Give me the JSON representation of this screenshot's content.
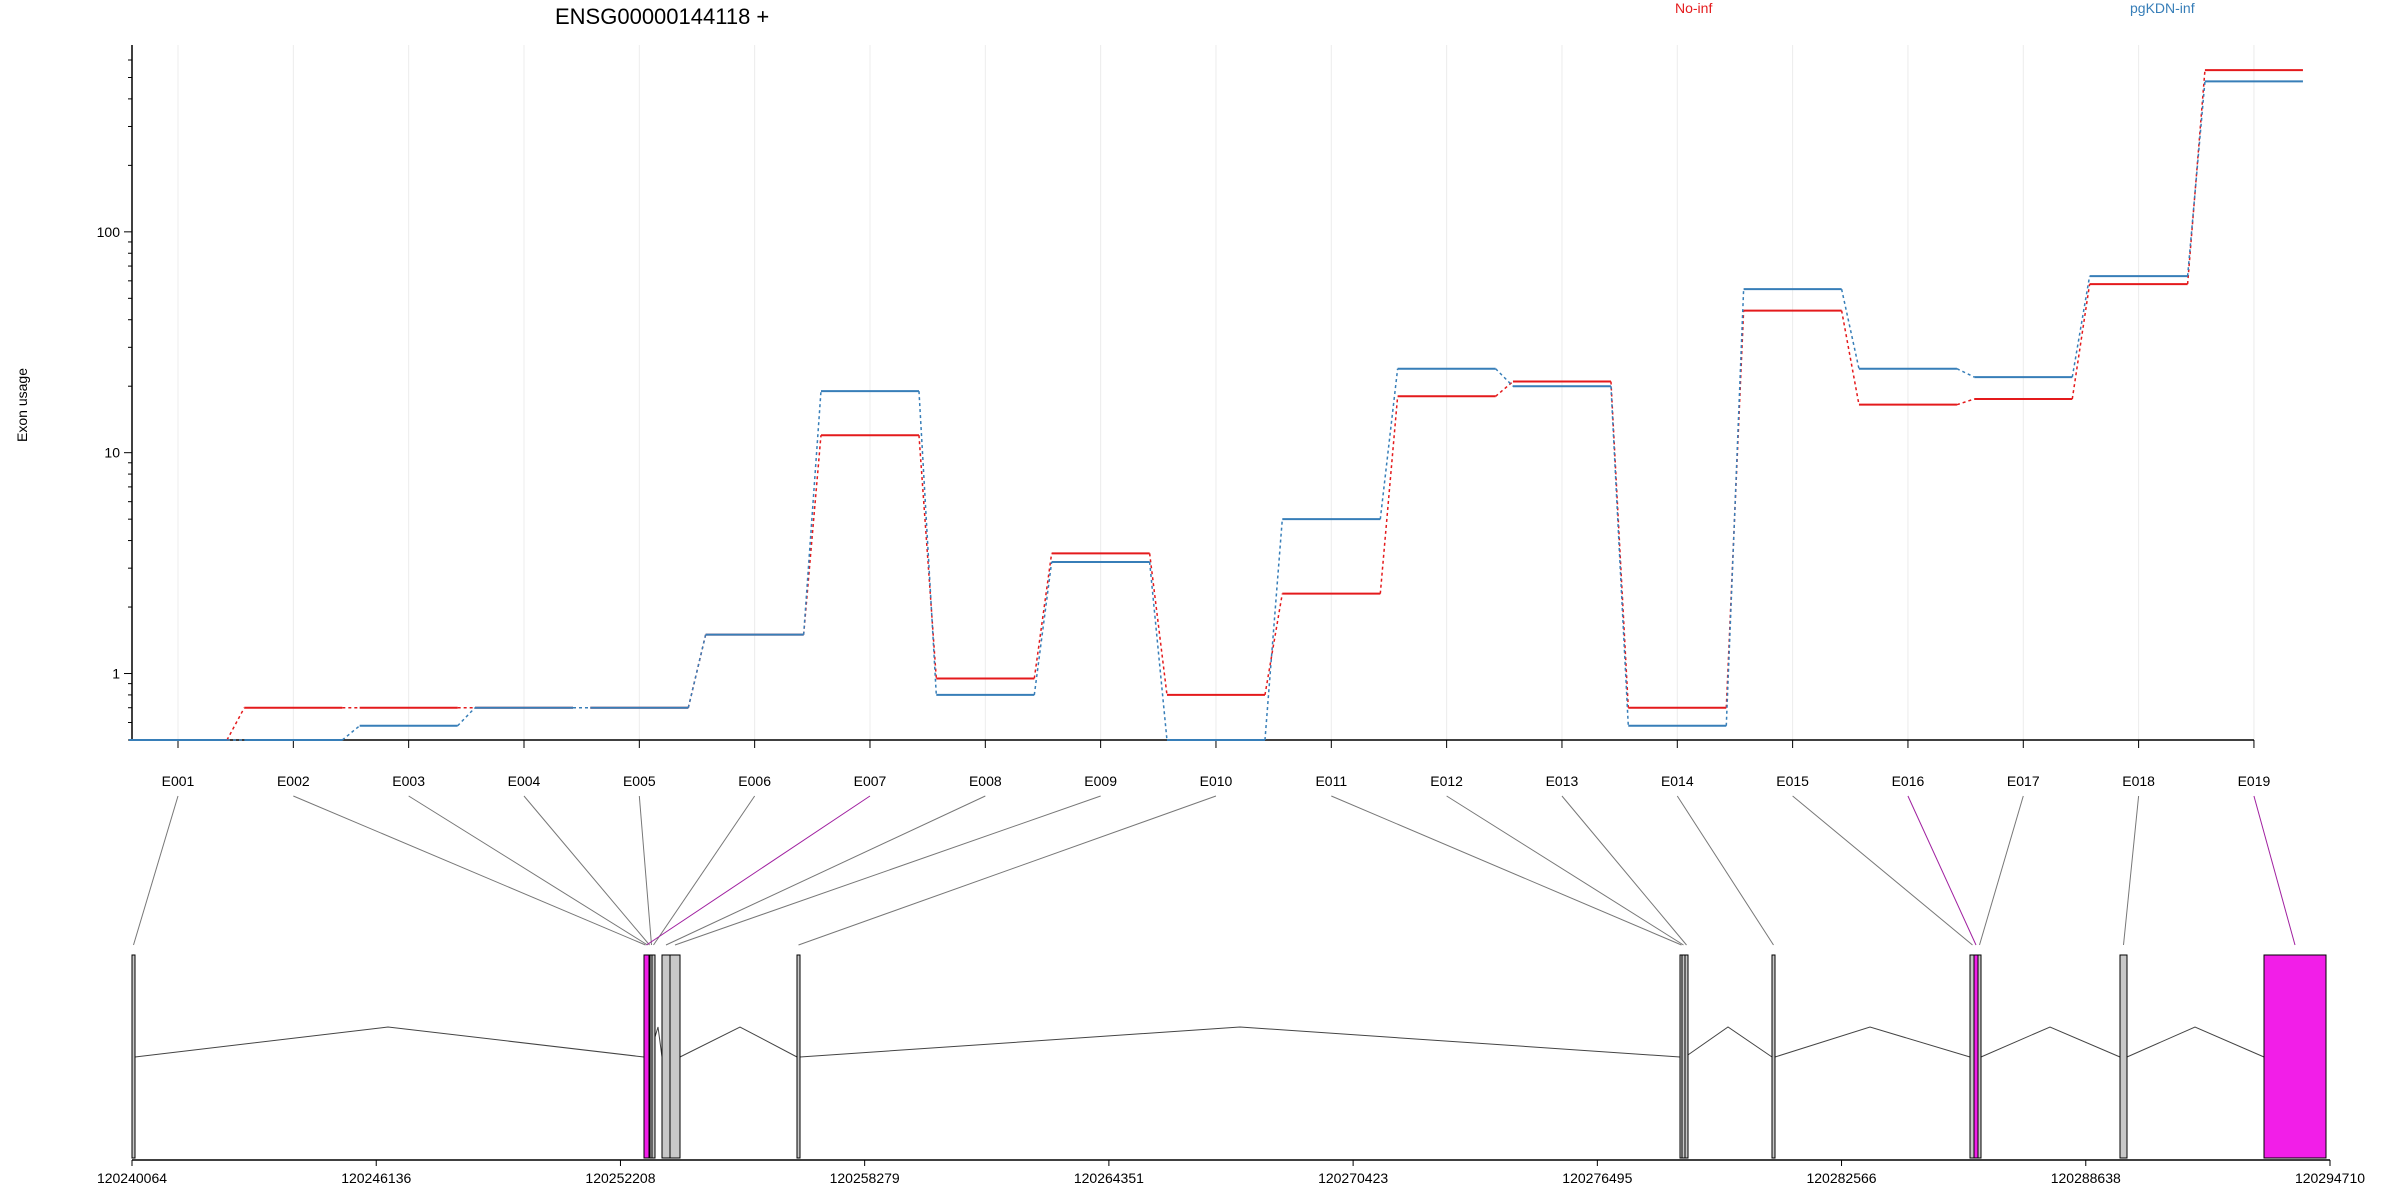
{
  "chart_data": {
    "type": "line",
    "title": "ENSG00000144118 +",
    "ylabel": "Exon usage",
    "xlabel": "",
    "y_scale": "log",
    "ylim": [
      0.5,
      600
    ],
    "y_ticks": [
      1,
      10,
      100
    ],
    "y_tick_labels": [
      "1",
      "10",
      "100"
    ],
    "grid": "vertical",
    "legend_placement": "top",
    "categories": [
      "E001",
      "E002",
      "E003",
      "E004",
      "E005",
      "E006",
      "E007",
      "E008",
      "E009",
      "E010",
      "E011",
      "E012",
      "E013",
      "E014",
      "E015",
      "E016",
      "E017",
      "E018",
      "E019"
    ],
    "series": [
      {
        "name": "No-inf",
        "color": "#e41a1c",
        "values": [
          0.5,
          0.7,
          0.7,
          0.7,
          0.7,
          1.5,
          12,
          0.95,
          3.5,
          0.8,
          2.3,
          18,
          21,
          0.7,
          44,
          16.5,
          17.5,
          58,
          540
        ]
      },
      {
        "name": "pgKDN-inf",
        "color": "#377eb8",
        "values": [
          0.5,
          0.5,
          0.58,
          0.7,
          0.7,
          1.5,
          19,
          0.8,
          3.2,
          0.5,
          5,
          24,
          20,
          0.58,
          55,
          24,
          22,
          63,
          480
        ]
      }
    ],
    "gene_model": {
      "coordinate_ticks": [
        "120240064",
        "120246136",
        "120252208",
        "120258279",
        "120264351",
        "120270423",
        "120276495",
        "120282566",
        "120288638",
        "120294710"
      ],
      "coordinate_range": [
        120240064,
        120294710
      ],
      "exon_color": "#c8c8c8",
      "highlight_color": "#f21ee8",
      "highlighted_exons": [
        "E007",
        "E016",
        "E019"
      ]
    }
  }
}
